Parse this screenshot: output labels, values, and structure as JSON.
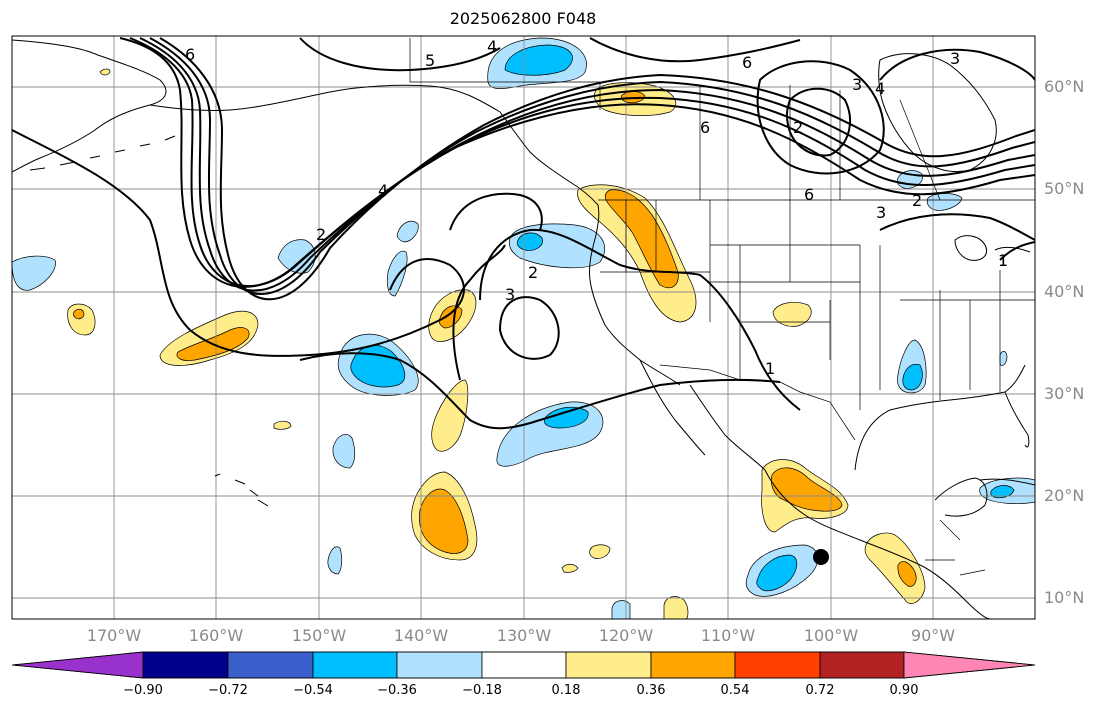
{
  "title": "2025062800 F048",
  "map": {
    "projection": "cylindrical",
    "lon_range": [
      -180,
      -80
    ],
    "lat_range": [
      8,
      65
    ],
    "latitude_labels": [
      "60°N",
      "50°N",
      "40°N",
      "30°N",
      "20°N",
      "10°N"
    ],
    "longitude_labels": [
      "170°W",
      "160°W",
      "150°W",
      "140°W",
      "130°W",
      "120°W",
      "110°W",
      "100°W",
      "90°W"
    ],
    "contour_labels": [
      "4",
      "5",
      "6",
      "6",
      "3",
      "4",
      "6",
      "2",
      "4",
      "2",
      "3",
      "6",
      "3",
      "2",
      "1",
      "1",
      "2",
      "3"
    ],
    "marker": {
      "name": "black dot",
      "lon": -101,
      "lat": 14
    }
  },
  "colorbar": {
    "tick_labels": [
      "−0.90",
      "−0.72",
      "−0.54",
      "−0.36",
      "−0.18",
      "0.18",
      "0.36",
      "0.54",
      "0.72",
      "0.90"
    ],
    "colors": [
      "#9932cc",
      "#00008b",
      "#3a5fcd",
      "#00bfff",
      "#b0e2ff",
      "#ffffff",
      "#ffec8b",
      "#ffa500",
      "#ff4000",
      "#b22222",
      "#ff86b4"
    ]
  }
}
